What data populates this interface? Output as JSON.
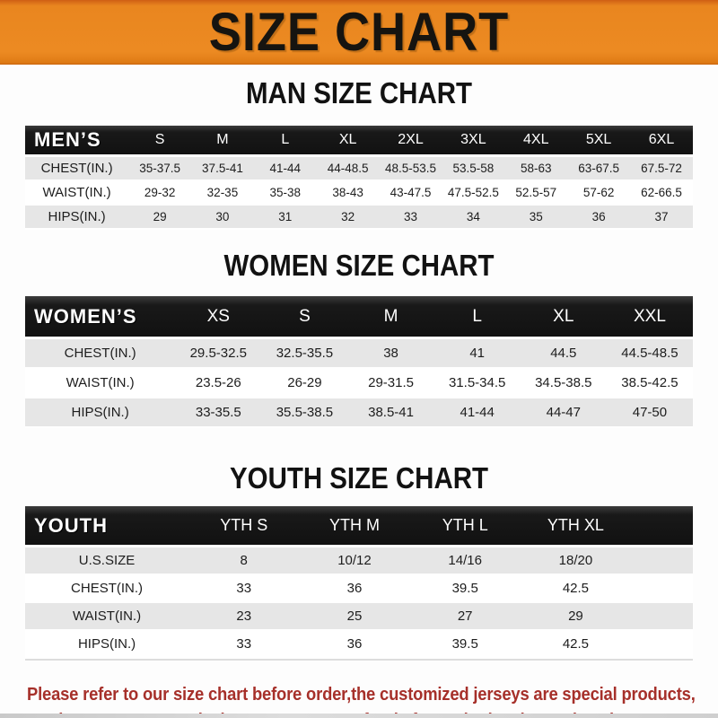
{
  "title": "SIZE CHART",
  "sections": [
    {
      "id": "men",
      "heading": "MAN SIZE CHART",
      "corner_label": "MEN’S",
      "columns": [
        "S",
        "M",
        "L",
        "XL",
        "2XL",
        "3XL",
        "4XL",
        "5XL",
        "6XL"
      ],
      "rows": [
        {
          "label": "CHEST(IN.)",
          "values": [
            "35-37.5",
            "37.5-41",
            "41-44",
            "44-48.5",
            "48.5-53.5",
            "53.5-58",
            "58-63",
            "63-67.5",
            "67.5-72"
          ]
        },
        {
          "label": "WAIST(IN.)",
          "values": [
            "29-32",
            "32-35",
            "35-38",
            "38-43",
            "43-47.5",
            "47.5-52.5",
            "52.5-57",
            "57-62",
            "62-66.5"
          ]
        },
        {
          "label": "HIPS(IN.)",
          "values": [
            "29",
            "30",
            "31",
            "32",
            "33",
            "34",
            "35",
            "36",
            "37"
          ]
        }
      ]
    },
    {
      "id": "women",
      "heading": "WOMEN SIZE CHART",
      "corner_label": "WOMEN’S",
      "columns": [
        "XS",
        "S",
        "M",
        "L",
        "XL",
        "XXL"
      ],
      "rows": [
        {
          "label": "CHEST(IN.)",
          "values": [
            "29.5-32.5",
            "32.5-35.5",
            "38",
            "41",
            "44.5",
            "44.5-48.5"
          ]
        },
        {
          "label": "WAIST(IN.)",
          "values": [
            "23.5-26",
            "26-29",
            "29-31.5",
            "31.5-34.5",
            "34.5-38.5",
            "38.5-42.5"
          ]
        },
        {
          "label": "HIPS(IN.)",
          "values": [
            "33-35.5",
            "35.5-38.5",
            "38.5-41",
            "41-44",
            "44-47",
            "47-50"
          ]
        }
      ]
    },
    {
      "id": "youth",
      "heading": "YOUTH SIZE CHART",
      "corner_label": "YOUTH",
      "columns": [
        "YTH S",
        "YTH M",
        "YTH L",
        "YTH XL"
      ],
      "rows": [
        {
          "label": "U.S.SIZE",
          "values": [
            "8",
            "10/12",
            "14/16",
            "18/20"
          ]
        },
        {
          "label": "CHEST(IN.)",
          "values": [
            "33",
            "36",
            "39.5",
            "42.5"
          ]
        },
        {
          "label": "WAIST(IN.)",
          "values": [
            "23",
            "25",
            "27",
            "29"
          ]
        },
        {
          "label": "HIPS(IN.)",
          "values": [
            "33",
            "36",
            "39.5",
            "42.5"
          ]
        }
      ]
    }
  ],
  "disclaimer": {
    "line1": "Please refer to our size chart before order,the customized jerseys are special products,",
    "line2": "we don't accept cancel, change, teturn or refund after order has been placed!"
  },
  "colors": {
    "banner_orange": "#E9861F",
    "header_bar_black": "#151515",
    "row_gray": "#E6E6E6",
    "disclaimer_red": "#A6302A"
  }
}
